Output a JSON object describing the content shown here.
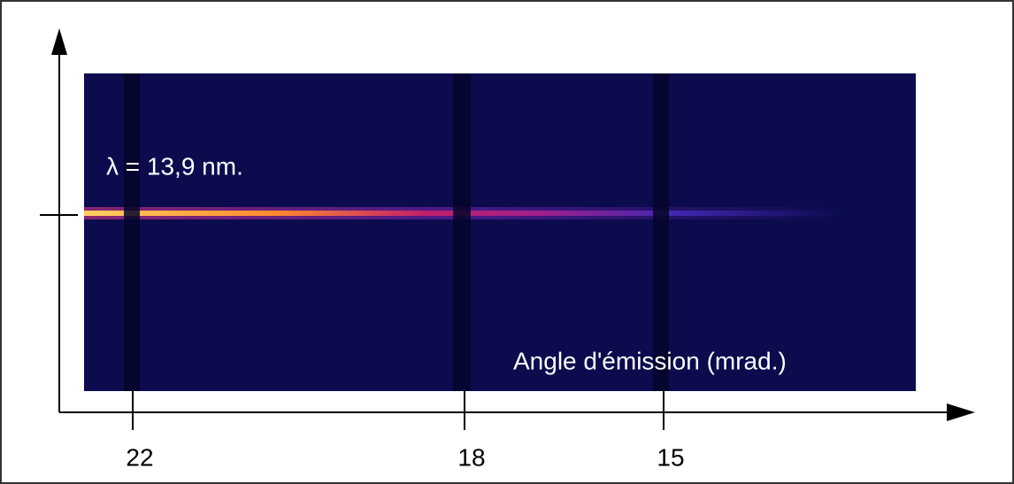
{
  "image": {
    "label": "λ = 13,9 nm.",
    "axis_title": "Angle d'émission (mrad.)"
  },
  "axis": {
    "ticks": [
      22,
      18,
      15
    ]
  }
}
